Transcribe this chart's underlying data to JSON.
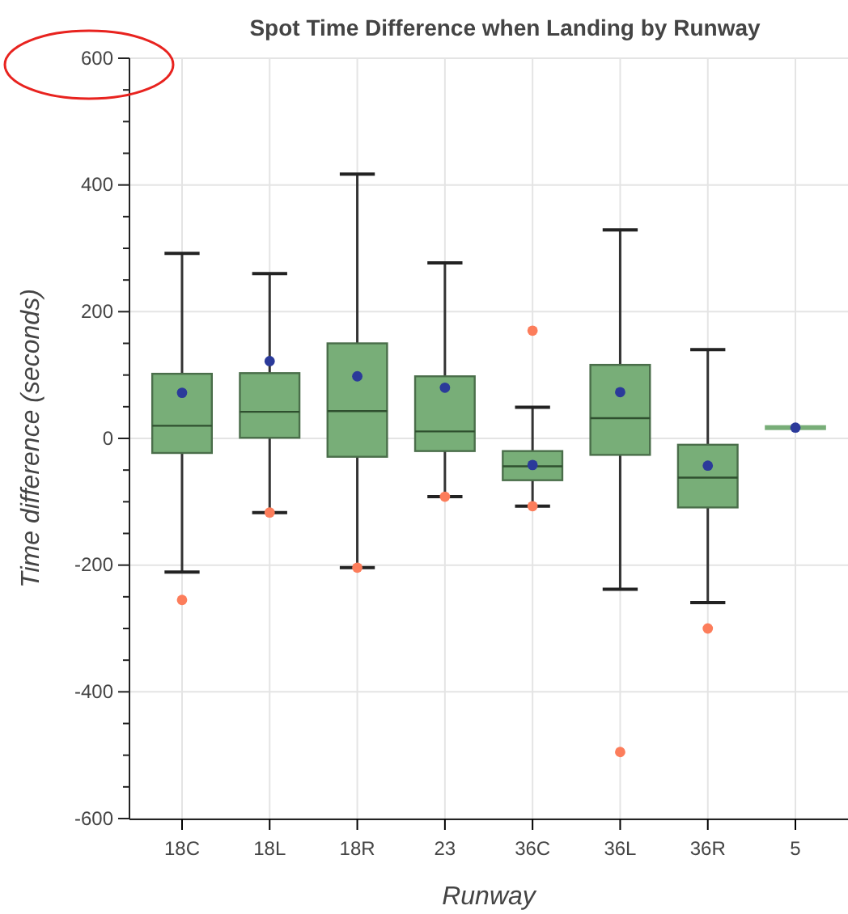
{
  "chart_data": {
    "type": "box",
    "title": "Spot Time Difference when Landing by Runway",
    "xlabel": "Runway",
    "ylabel": "Time difference (seconds)",
    "categories": [
      "18C",
      "18L",
      "18R",
      "23",
      "36C",
      "36L",
      "36R",
      "5"
    ],
    "ylim": [
      -600,
      600
    ],
    "yticks": [
      -600,
      {
        "value": -550,
        "label": null
      },
      {
        "value": -500,
        "label": null
      },
      {
        "value": -450,
        "label": null
      },
      -400,
      {
        "value": -350,
        "label": null
      },
      {
        "value": -300,
        "label": null
      },
      {
        "value": -250,
        "label": null
      },
      -200,
      {
        "value": -150,
        "label": null
      },
      {
        "value": -100,
        "label": null
      },
      {
        "value": -50,
        "label": null
      },
      0,
      {
        "value": 50,
        "label": null
      },
      {
        "value": 100,
        "label": null
      },
      {
        "value": 150,
        "label": null
      },
      200,
      {
        "value": 250,
        "label": null
      },
      {
        "value": 300,
        "label": null
      },
      {
        "value": 350,
        "label": null
      },
      400,
      {
        "value": 450,
        "label": null
      },
      {
        "value": 500,
        "label": null
      },
      {
        "value": 550,
        "label": null
      },
      600
    ],
    "grid": true,
    "series": [
      {
        "type": "box",
        "color": "#78ae78",
        "boxes": [
          {
            "low": -211,
            "q1": -23,
            "median": 20,
            "q3": 102,
            "high": 292,
            "mean": 72,
            "outliers": [
              -255
            ]
          },
          {
            "low": -117,
            "q1": 1,
            "median": 42,
            "q3": 103,
            "high": 260,
            "mean": 122,
            "outliers": [
              -117
            ]
          },
          {
            "low": -204,
            "q1": -29,
            "median": 43,
            "q3": 150,
            "high": 417,
            "mean": 98,
            "outliers": [
              -204
            ]
          },
          {
            "low": -92,
            "q1": -20,
            "median": 11,
            "q3": 98,
            "high": 277,
            "mean": 80,
            "outliers": [
              -92
            ]
          },
          {
            "low": -107,
            "q1": -66,
            "median": -44,
            "q3": -20,
            "high": 49,
            "mean": -42,
            "outliers": [
              -107,
              170
            ]
          },
          {
            "low": -238,
            "q1": -26,
            "median": 32,
            "q3": 116,
            "high": 329,
            "mean": 73,
            "outliers": [
              -495
            ]
          },
          {
            "low": -259,
            "q1": -109,
            "median": -62,
            "q3": -10,
            "high": 140,
            "mean": -43,
            "outliers": [
              -300
            ]
          },
          {
            "low": 17,
            "q1": 17,
            "median": 17,
            "q3": 17,
            "high": 17,
            "mean": 17
          }
        ]
      }
    ]
  }
}
